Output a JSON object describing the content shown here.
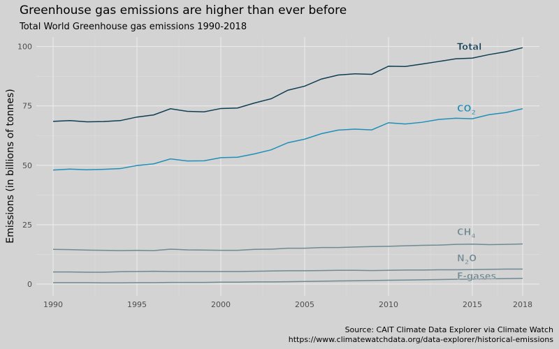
{
  "chart_data": {
    "type": "line",
    "title": "Greenhouse gas emissions are higher than ever before",
    "subtitle": "Total World Greenhouse gas emissions 1990-2018",
    "xlabel": "",
    "ylabel": "Emissions (in billions of tonnes)",
    "caption_lines": [
      "Source: CAIT Climate Data Explorer via Climate Watch",
      "https://www.climatewatchdata.org/data-explorer/historical-emissions"
    ],
    "x": [
      1990,
      1991,
      1992,
      1993,
      1994,
      1995,
      1996,
      1997,
      1998,
      1999,
      2000,
      2001,
      2002,
      2003,
      2004,
      2005,
      2006,
      2007,
      2008,
      2009,
      2010,
      2011,
      2012,
      2013,
      2014,
      2015,
      2016,
      2017,
      2018
    ],
    "xlim": [
      1989,
      2019
    ],
    "ylim": [
      -5,
      104
    ],
    "x_ticks": [
      1990,
      1995,
      2000,
      2005,
      2010,
      2015,
      2018
    ],
    "y_ticks": [
      0,
      25,
      50,
      75,
      100
    ],
    "grid": true,
    "series": [
      {
        "name": "Total",
        "label_key": "total",
        "color": "#0e3d52",
        "values": [
          68.5,
          68.8,
          68.3,
          68.4,
          68.8,
          70.3,
          71.2,
          73.8,
          72.7,
          72.5,
          73.9,
          74.1,
          76.2,
          78.0,
          81.6,
          83.3,
          86.3,
          88.0,
          88.5,
          88.3,
          91.7,
          91.6,
          92.6,
          93.7,
          94.8,
          95.1,
          96.6,
          97.8,
          99.5
        ]
      },
      {
        "name": "CO2",
        "label_key": "co2",
        "color": "#1f8fb8",
        "values": [
          48.0,
          48.4,
          48.1,
          48.3,
          48.6,
          49.9,
          50.6,
          52.7,
          51.8,
          51.9,
          53.2,
          53.4,
          54.8,
          56.5,
          59.5,
          61.0,
          63.3,
          64.8,
          65.2,
          64.9,
          67.9,
          67.4,
          68.1,
          69.3,
          69.8,
          69.6,
          71.3,
          72.2,
          73.8
        ]
      },
      {
        "name": "CH4",
        "label_key": "ch4",
        "color": "#6e8a92",
        "values": [
          14.6,
          14.5,
          14.3,
          14.2,
          14.1,
          14.2,
          14.1,
          14.7,
          14.4,
          14.3,
          14.2,
          14.2,
          14.6,
          14.7,
          15.1,
          15.1,
          15.4,
          15.4,
          15.6,
          15.8,
          15.9,
          16.1,
          16.3,
          16.4,
          16.7,
          16.8,
          16.6,
          16.7,
          16.9
        ]
      },
      {
        "name": "N2O",
        "label_key": "n2o",
        "color": "#6e8a92",
        "values": [
          5.1,
          5.1,
          5.0,
          5.0,
          5.2,
          5.3,
          5.4,
          5.3,
          5.3,
          5.3,
          5.3,
          5.3,
          5.4,
          5.5,
          5.6,
          5.6,
          5.7,
          5.8,
          5.8,
          5.7,
          5.8,
          5.9,
          5.9,
          6.0,
          6.0,
          6.1,
          6.2,
          6.3,
          6.3
        ]
      },
      {
        "name": "F-gases",
        "label_key": "fgas",
        "color": "#6e8a92",
        "values": [
          0.6,
          0.6,
          0.6,
          0.5,
          0.5,
          0.6,
          0.6,
          0.7,
          0.7,
          0.7,
          0.8,
          0.8,
          0.9,
          0.9,
          1.0,
          1.1,
          1.2,
          1.3,
          1.4,
          1.5,
          1.6,
          1.7,
          1.8,
          1.9,
          2.0,
          2.1,
          2.2,
          2.3,
          2.4
        ]
      }
    ],
    "series_labels": {
      "total": {
        "text": "Total",
        "x": 2014,
        "y": 100
      },
      "co2": {
        "main": "CO",
        "sub": "2",
        "x": 2014,
        "y": 74
      },
      "ch4": {
        "main": "CH",
        "sub": "4",
        "x": 2014,
        "y": 22
      },
      "n2o": {
        "main": "N",
        "sub": "2",
        "rest": "O",
        "x": 2014,
        "y": 11
      },
      "fgas": {
        "text": "F-gases",
        "x": 2014,
        "y": 3.5
      }
    }
  }
}
